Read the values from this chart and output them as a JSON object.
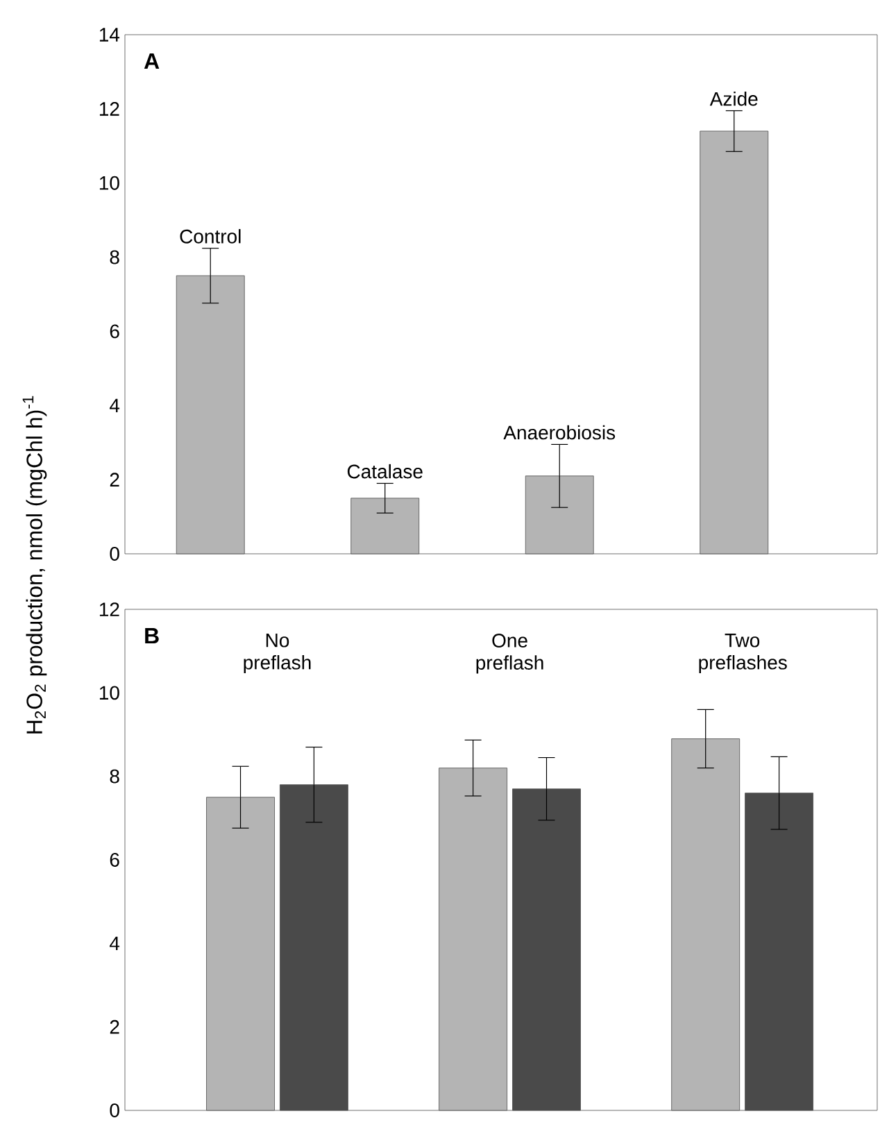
{
  "chart_data": [
    {
      "type": "bar",
      "title": "A",
      "ylabel": "H$_{2}$O$_{2}$ production, nmol (mgChl h)$^{-1}$",
      "categories": [
        "Control",
        "Catalase",
        "Anaerobiosis",
        "Azide"
      ],
      "values": [
        7.5,
        1.5,
        2.1,
        11.4
      ],
      "errors": [
        0.74,
        0.4,
        0.85,
        0.55
      ],
      "color": "#b4b4b4",
      "ylim": [
        0,
        14
      ],
      "yticks": [
        0,
        2,
        4,
        6,
        8,
        10,
        12,
        14
      ],
      "grid": false
    },
    {
      "type": "bar",
      "title": "B",
      "categories": [
        "No preflash",
        "One preflash",
        "Two preflashes"
      ],
      "series": [
        {
          "color": "#b4b4b4",
          "values": [
            7.5,
            8.2,
            8.9
          ],
          "errors": [
            0.74,
            0.67,
            0.7
          ]
        },
        {
          "color": "#4a4a4a",
          "values": [
            7.8,
            7.7,
            7.6
          ],
          "errors": [
            0.9,
            0.75,
            0.87
          ]
        }
      ],
      "ylim": [
        0,
        12
      ],
      "yticks": [
        0,
        2,
        4,
        6,
        8,
        10,
        12
      ],
      "grid": false
    }
  ]
}
